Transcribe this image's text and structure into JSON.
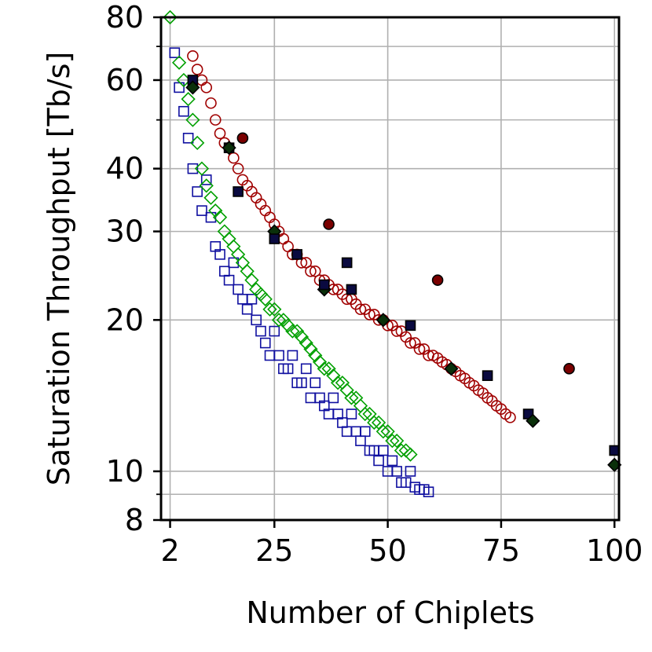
{
  "chart_data": {
    "type": "scatter",
    "title": "",
    "xlabel": "Number of Chiplets",
    "ylabel": "Saturation Throughput [Tb/s]",
    "xlim": [
      0,
      101
    ],
    "ylim": [
      8,
      80
    ],
    "yscale": "log",
    "x_ticks": [
      {
        "value": 2,
        "label": "2"
      },
      {
        "value": 25,
        "label": "25"
      },
      {
        "value": 50,
        "label": "50"
      },
      {
        "value": 75,
        "label": "75"
      },
      {
        "value": 100,
        "label": "100"
      }
    ],
    "y_ticks": [
      {
        "value": 8,
        "label": "8"
      },
      {
        "value": 10,
        "label": "10"
      },
      {
        "value": 20,
        "label": "20"
      },
      {
        "value": 30,
        "label": "30"
      },
      {
        "value": 40,
        "label": "40"
      },
      {
        "value": 60,
        "label": "60"
      },
      {
        "value": 80,
        "label": "80"
      }
    ],
    "y_minor_ticks": [
      9,
      50,
      70
    ],
    "y_grid_extra": [
      9,
      50,
      70
    ],
    "grid": true,
    "series": [
      {
        "name": "circles",
        "marker": "circle",
        "color": "#a00000",
        "points": [
          [
            7,
            67
          ],
          [
            8,
            63
          ],
          [
            9,
            60
          ],
          [
            10,
            58
          ],
          [
            11,
            54
          ],
          [
            12,
            50
          ],
          [
            13,
            47
          ],
          [
            14,
            45
          ],
          [
            15,
            44
          ],
          [
            16,
            42
          ],
          [
            17,
            40
          ],
          [
            18,
            38
          ],
          [
            19,
            37
          ],
          [
            20,
            36
          ],
          [
            21,
            35
          ],
          [
            22,
            34
          ],
          [
            23,
            33
          ],
          [
            24,
            32
          ],
          [
            25,
            31
          ],
          [
            26,
            30
          ],
          [
            27,
            29
          ],
          [
            28,
            28
          ],
          [
            29,
            27
          ],
          [
            30,
            27
          ],
          [
            31,
            26
          ],
          [
            32,
            26
          ],
          [
            33,
            25
          ],
          [
            34,
            25
          ],
          [
            35,
            24
          ],
          [
            36,
            24
          ],
          [
            37,
            23.5
          ],
          [
            38,
            23
          ],
          [
            39,
            23
          ],
          [
            40,
            22.5
          ],
          [
            41,
            22
          ],
          [
            42,
            22
          ],
          [
            43,
            21.5
          ],
          [
            44,
            21
          ],
          [
            45,
            21
          ],
          [
            46,
            20.5
          ],
          [
            47,
            20.5
          ],
          [
            48,
            20
          ],
          [
            49,
            20
          ],
          [
            50,
            19.5
          ],
          [
            51,
            19.5
          ],
          [
            52,
            19
          ],
          [
            53,
            19
          ],
          [
            54,
            18.5
          ],
          [
            55,
            18
          ],
          [
            56,
            18
          ],
          [
            57,
            17.5
          ],
          [
            58,
            17.5
          ],
          [
            59,
            17
          ],
          [
            60,
            17
          ],
          [
            61,
            16.8
          ],
          [
            62,
            16.5
          ],
          [
            63,
            16.3
          ],
          [
            64,
            16
          ],
          [
            65,
            15.8
          ],
          [
            66,
            15.5
          ],
          [
            67,
            15.3
          ],
          [
            68,
            15
          ],
          [
            69,
            14.8
          ],
          [
            70,
            14.5
          ],
          [
            71,
            14.3
          ],
          [
            72,
            14
          ],
          [
            73,
            13.8
          ],
          [
            74,
            13.5
          ],
          [
            75,
            13.3
          ],
          [
            76,
            13
          ],
          [
            77,
            12.8
          ]
        ]
      },
      {
        "name": "squares",
        "marker": "square",
        "color": "#1010a0",
        "points": [
          [
            3,
            68
          ],
          [
            4,
            58
          ],
          [
            5,
            52
          ],
          [
            6,
            46
          ],
          [
            7,
            40
          ],
          [
            8,
            36
          ],
          [
            9,
            33
          ],
          [
            10,
            38
          ],
          [
            11,
            32
          ],
          [
            12,
            28
          ],
          [
            13,
            27
          ],
          [
            14,
            25
          ],
          [
            15,
            24
          ],
          [
            16,
            26
          ],
          [
            17,
            23
          ],
          [
            18,
            22
          ],
          [
            19,
            21
          ],
          [
            20,
            22
          ],
          [
            21,
            20
          ],
          [
            22,
            19
          ],
          [
            23,
            18
          ],
          [
            24,
            17
          ],
          [
            25,
            19
          ],
          [
            26,
            17
          ],
          [
            27,
            16
          ],
          [
            28,
            16
          ],
          [
            29,
            17
          ],
          [
            30,
            15
          ],
          [
            31,
            15
          ],
          [
            32,
            16
          ],
          [
            33,
            14
          ],
          [
            34,
            15
          ],
          [
            35,
            14
          ],
          [
            36,
            13.5
          ],
          [
            37,
            13
          ],
          [
            38,
            14
          ],
          [
            39,
            13
          ],
          [
            40,
            12.5
          ],
          [
            41,
            12
          ],
          [
            42,
            13
          ],
          [
            43,
            12
          ],
          [
            44,
            11.5
          ],
          [
            45,
            12
          ],
          [
            46,
            11
          ],
          [
            47,
            11
          ],
          [
            48,
            10.5
          ],
          [
            49,
            11
          ],
          [
            50,
            10
          ],
          [
            51,
            10.5
          ],
          [
            52,
            10
          ],
          [
            53,
            9.5
          ],
          [
            54,
            9.5
          ],
          [
            55,
            10
          ],
          [
            56,
            9.3
          ],
          [
            57,
            9.2
          ],
          [
            58,
            9.2
          ],
          [
            59,
            9.1
          ]
        ]
      },
      {
        "name": "diamonds",
        "marker": "diamond",
        "color": "#00a000",
        "points": [
          [
            2,
            80
          ],
          [
            4,
            65
          ],
          [
            5,
            60
          ],
          [
            6,
            55
          ],
          [
            7,
            50
          ],
          [
            8,
            45
          ],
          [
            9,
            40
          ],
          [
            10,
            37
          ],
          [
            11,
            35
          ],
          [
            12,
            33
          ],
          [
            13,
            32
          ],
          [
            14,
            30
          ],
          [
            15,
            29
          ],
          [
            16,
            28
          ],
          [
            17,
            27
          ],
          [
            18,
            26
          ],
          [
            19,
            25
          ],
          [
            20,
            24
          ],
          [
            21,
            23
          ],
          [
            22,
            22.5
          ],
          [
            23,
            22
          ],
          [
            24,
            21
          ],
          [
            25,
            21
          ],
          [
            26,
            20
          ],
          [
            27,
            20
          ],
          [
            28,
            19.5
          ],
          [
            29,
            19
          ],
          [
            30,
            19
          ],
          [
            31,
            18.5
          ],
          [
            32,
            18
          ],
          [
            33,
            17.5
          ],
          [
            34,
            17
          ],
          [
            35,
            16.5
          ],
          [
            36,
            16
          ],
          [
            37,
            16
          ],
          [
            38,
            15.5
          ],
          [
            39,
            15
          ],
          [
            40,
            15
          ],
          [
            41,
            14.5
          ],
          [
            42,
            14
          ],
          [
            43,
            14
          ],
          [
            44,
            13.5
          ],
          [
            45,
            13
          ],
          [
            46,
            13
          ],
          [
            47,
            12.5
          ],
          [
            48,
            12.5
          ],
          [
            49,
            12
          ],
          [
            50,
            12
          ],
          [
            51,
            11.5
          ],
          [
            52,
            11.5
          ],
          [
            53,
            11
          ],
          [
            54,
            11
          ],
          [
            55,
            10.8
          ]
        ]
      },
      {
        "name": "filled-highlights",
        "marker": "mixed",
        "color": "#000000",
        "points": [
          [
            7,
            60,
            "square"
          ],
          [
            7,
            58,
            "diamond"
          ],
          [
            15,
            44,
            "square"
          ],
          [
            15,
            44,
            "diamond"
          ],
          [
            18,
            46,
            "circle"
          ],
          [
            17,
            36,
            "square"
          ],
          [
            25,
            30,
            "diamond"
          ],
          [
            25,
            29,
            "square"
          ],
          [
            30,
            27,
            "square"
          ],
          [
            36,
            23,
            "diamond"
          ],
          [
            36,
            23.5,
            "square"
          ],
          [
            37,
            31,
            "circle"
          ],
          [
            41,
            26,
            "square"
          ],
          [
            42,
            23,
            "square"
          ],
          [
            49,
            20,
            "diamond"
          ],
          [
            55,
            19.5,
            "square"
          ],
          [
            61,
            24,
            "circle"
          ],
          [
            64,
            16,
            "diamond"
          ],
          [
            72,
            15.5,
            "square"
          ],
          [
            81,
            13,
            "square"
          ],
          [
            82,
            12.6,
            "diamond"
          ],
          [
            90,
            16,
            "circle"
          ],
          [
            100,
            11,
            "square"
          ],
          [
            100,
            10.3,
            "diamond"
          ]
        ]
      }
    ]
  }
}
